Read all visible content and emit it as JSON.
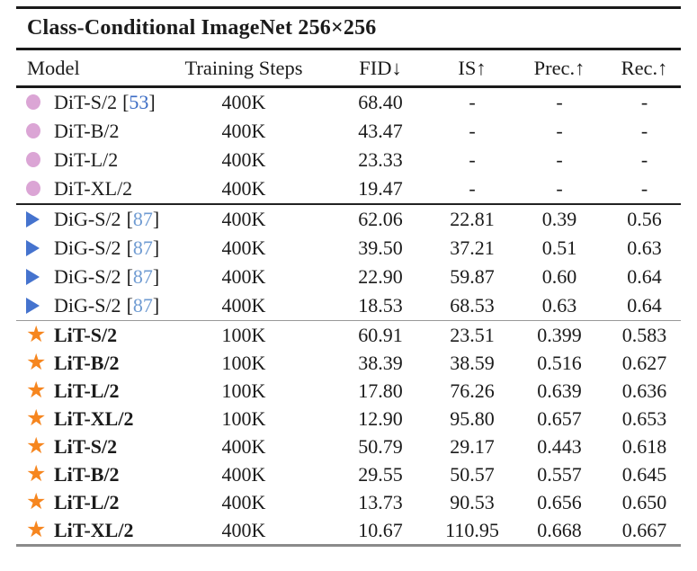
{
  "title": "Class-Conditional ImageNet 256×256",
  "columns": [
    "Model",
    "Training Steps",
    "FID↓",
    "IS↑",
    "Prec.↑",
    "Rec.↑"
  ],
  "icons": {
    "star": "★"
  },
  "colors": {
    "dit_marker": "#DBA5D5",
    "dig_marker": "#4573CE",
    "lit_marker": "#F6861F",
    "cite_53": "#3A6BC4",
    "cite_87": "#6F9BD2",
    "rule_dark": "#1A1A1A",
    "rule_gray": "#999999",
    "rule_bottom": "#8A8A8A"
  },
  "groups": [
    {
      "name": "DiT",
      "marker": "circle",
      "rows": [
        {
          "model": "DiT-S/2",
          "cite": {
            "open": "[",
            "num": "53",
            "close": "]"
          },
          "steps": "400K",
          "fid": "68.40",
          "is": "-",
          "prec": "-",
          "rec": "-"
        },
        {
          "model": "DiT-B/2",
          "steps": "400K",
          "fid": "43.47",
          "is": "-",
          "prec": "-",
          "rec": "-"
        },
        {
          "model": "DiT-L/2",
          "steps": "400K",
          "fid": "23.33",
          "is": "-",
          "prec": "-",
          "rec": "-"
        },
        {
          "model": "DiT-XL/2",
          "steps": "400K",
          "fid": "19.47",
          "is": "-",
          "prec": "-",
          "rec": "-"
        }
      ]
    },
    {
      "name": "DiG",
      "marker": "triangle",
      "rows": [
        {
          "model": "DiG-S/2",
          "cite": {
            "open": "[",
            "num": "87",
            "close": "]"
          },
          "steps": "400K",
          "fid": "62.06",
          "is": "22.81",
          "prec": "0.39",
          "rec": "0.56"
        },
        {
          "model": "DiG-S/2",
          "cite": {
            "open": "[",
            "num": "87",
            "close": "]"
          },
          "steps": "400K",
          "fid": "39.50",
          "is": "37.21",
          "prec": "0.51",
          "rec": "0.63"
        },
        {
          "model": "DiG-S/2",
          "cite": {
            "open": "[",
            "num": "87",
            "close": "]"
          },
          "steps": "400K",
          "fid": "22.90",
          "is": "59.87",
          "prec": "0.60",
          "rec": "0.64"
        },
        {
          "model": "DiG-S/2",
          "cite": {
            "open": "[",
            "num": "87",
            "close": "]"
          },
          "steps": "400K",
          "fid": "18.53",
          "is": "68.53",
          "prec": "0.63",
          "rec": "0.64"
        }
      ]
    },
    {
      "name": "LiT",
      "marker": "star",
      "rows": [
        {
          "model": "LiT-S/2",
          "steps": "100K",
          "fid": "60.91",
          "is": "23.51",
          "prec": "0.399",
          "rec": "0.583"
        },
        {
          "model": "LiT-B/2",
          "steps": "100K",
          "fid": "38.39",
          "is": "38.59",
          "prec": "0.516",
          "rec": "0.627"
        },
        {
          "model": "LiT-L/2",
          "steps": "100K",
          "fid": "17.80",
          "is": "76.26",
          "prec": "0.639",
          "rec": "0.636"
        },
        {
          "model": "LiT-XL/2",
          "steps": "100K",
          "fid": "12.90",
          "is": "95.80",
          "prec": "0.657",
          "rec": "0.653"
        },
        {
          "model": "LiT-S/2",
          "steps": "400K",
          "fid": "50.79",
          "is": "29.17",
          "prec": "0.443",
          "rec": "0.618"
        },
        {
          "model": "LiT-B/2",
          "steps": "400K",
          "fid": "29.55",
          "is": "50.57",
          "prec": "0.557",
          "rec": "0.645"
        },
        {
          "model": "LiT-L/2",
          "steps": "400K",
          "fid": "13.73",
          "is": "90.53",
          "prec": "0.656",
          "rec": "0.650"
        },
        {
          "model": "LiT-XL/2",
          "steps": "400K",
          "fid": "10.67",
          "is": "110.95",
          "prec": "0.668",
          "rec": "0.667"
        }
      ]
    }
  ]
}
